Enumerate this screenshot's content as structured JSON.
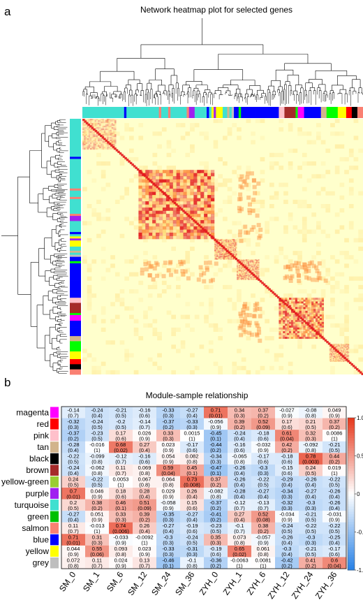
{
  "panel_a": {
    "letter": "a",
    "title": "Network heatmap plot for selected genes"
  },
  "panel_b": {
    "letter": "b",
    "title": "Module-sample relationship"
  },
  "chart_data": [
    {
      "type": "heatmap",
      "panel": "a",
      "title": "Network heatmap plot for selected genes",
      "description_free": true,
      "module_color_bar_colors": [
        "#40e0d0",
        "#0000ff",
        "#ffff00",
        "#a52a2a",
        "#00ff00",
        "#ff00ff",
        "#000000",
        "#ffc0cb",
        "#d2b48c",
        "#ff0000",
        "#fa8072",
        "#9acd32",
        "#a020f0",
        "#bebebe"
      ],
      "colorscale": [
        "#ffffd0",
        "#fed976",
        "#fd8d3c",
        "#e31a1c"
      ]
    },
    {
      "type": "heatmap",
      "panel": "b",
      "title": "Module-sample relationship",
      "x_categories": [
        "SM_0",
        "SM_1",
        "SM_6",
        "SM_12",
        "SM_24",
        "SM_36",
        "ZYH_0",
        "ZYH_1",
        "ZYH_6",
        "ZYH_12",
        "ZYH_24",
        "ZYH_36"
      ],
      "y_categories": [
        "magenta",
        "red",
        "pink",
        "tan",
        "black",
        "brown",
        "yellow-green",
        "purple",
        "turquoise",
        "green",
        "salmon",
        "blue",
        "yellow",
        "grey"
      ],
      "row_colors": [
        "#ff00ff",
        "#ff0000",
        "#ffc0cb",
        "#d2b48c",
        "#000000",
        "#a52a2a",
        "#9acd32",
        "#a020f0",
        "#40e0d0",
        "#00c000",
        "#fa8072",
        "#0000ff",
        "#ffff00",
        "#bebebe"
      ],
      "values": [
        [
          -0.14,
          -0.24,
          -0.21,
          -0.16,
          -0.33,
          -0.27,
          0.71,
          0.34,
          0.37,
          -0.027,
          -0.08,
          0.049
        ],
        [
          -0.32,
          -0.24,
          -0.2,
          -0.14,
          -0.37,
          -0.33,
          -0.056,
          0.39,
          0.52,
          0.17,
          0.21,
          0.37
        ],
        [
          -0.37,
          -0.23,
          0.17,
          0.026,
          0.33,
          0.0015,
          -0.45,
          -0.24,
          -0.18,
          0.61,
          0.32,
          0.0086
        ],
        [
          -0.28,
          -0.016,
          0.68,
          0.27,
          0.023,
          -0.17,
          -0.44,
          -0.16,
          -0.032,
          0.42,
          -0.092,
          -0.21
        ],
        [
          -0.22,
          -0.099,
          -0.12,
          -0.16,
          0.054,
          0.082,
          -0.34,
          -0.065,
          -0.17,
          -0.18,
          0.78,
          0.44
        ],
        [
          -0.24,
          -0.062,
          0.11,
          0.069,
          0.59,
          0.45,
          -0.47,
          -0.26,
          -0.3,
          -0.15,
          0.24,
          0.019
        ],
        [
          0.24,
          -0.22,
          0.0053,
          0.067,
          0.064,
          0.73,
          0.37,
          -0.26,
          -0.22,
          -0.29,
          -0.26,
          -0.22
        ],
        [
          0.7,
          0.046,
          0.18,
          0.28,
          0.029,
          0.26,
          -0.082,
          -0.28,
          -0.27,
          -0.34,
          -0.27,
          -0.26
        ],
        [
          0.2,
          0.38,
          0.46,
          0.51,
          -0.058,
          0.15,
          -0.37,
          -0.12,
          -0.13,
          -0.32,
          -0.3,
          -0.26
        ],
        [
          -0.27,
          0.051,
          0.33,
          0.39,
          -0.35,
          -0.27,
          -0.41,
          0.27,
          0.52,
          -0.034,
          -0.21,
          -0.031
        ],
        [
          0.11,
          -0.013,
          0.74,
          0.26,
          -0.27,
          -0.19,
          -0.23,
          -0.1,
          0.38,
          -0.24,
          -0.22,
          -0.22
        ],
        [
          0.71,
          0.31,
          -0.033,
          -0.0092,
          -0.3,
          -0.24,
          0.35,
          0.073,
          -0.057,
          -0.26,
          -0.3,
          -0.25
        ],
        [
          0.044,
          0.55,
          0.093,
          0.023,
          -0.33,
          -0.31,
          -0.19,
          0.65,
          0.061,
          -0.3,
          -0.21,
          -0.17
        ],
        [
          0.072,
          0.11,
          0.024,
          0.13,
          -0.46,
          -0.1,
          -0.36,
          -0.0063,
          0.0081,
          -0.42,
          0.41,
          0.6
        ]
      ],
      "pvalues": [
        [
          "(0.7)",
          "(0.4)",
          "(0.5)",
          "(0.6)",
          "(0.3)",
          "(0.4)",
          "(0.01)",
          "(0.3)",
          "(0.2)",
          "(0.9)",
          "(0.8)",
          "(0.9)"
        ],
        [
          "(0.3)",
          "(0.5)",
          "(0.5)",
          "(0.7)",
          "(0.2)",
          "(0.3)",
          "(0.9)",
          "(0.2)",
          "(0.09)",
          "(0.6)",
          "(0.5)",
          "(0.2)"
        ],
        [
          "(0.2)",
          "(0.5)",
          "(0.6)",
          "(0.9)",
          "(0.3)",
          "(1)",
          "(0.1)",
          "(0.4)",
          "(0.6)",
          "(0.04)",
          "(0.3)",
          "(1)"
        ],
        [
          "(0.4)",
          "(1)",
          "(0.02)",
          "(0.4)",
          "(0.9)",
          "(0.6)",
          "(0.2)",
          "(0.6)",
          "(0.9)",
          "(0.2)",
          "(0.8)",
          "(0.5)"
        ],
        [
          "(0.5)",
          "(0.8)",
          "(0.7)",
          "(0.6)",
          "(0.9)",
          "(0.8)",
          "(0.3)",
          "(0.8)",
          "(0.6)",
          "(0.6)",
          "(0.003)",
          "(0.2)"
        ],
        [
          "(0.4)",
          "(0.8)",
          "(0.7)",
          "(0.8)",
          "(0.04)",
          "(0.1)",
          "(0.1)",
          "(0.4)",
          "(0.3)",
          "(0.6)",
          "(0.5)",
          "(1)"
        ],
        [
          "(0.5)",
          "(0.5)",
          "(1)",
          "(0.8)",
          "(0.8)",
          "(0.008)",
          "(0.2)",
          "(0.4)",
          "(0.5)",
          "(0.4)",
          "(0.4)",
          "(0.5)"
        ],
        [
          "(0.01)",
          "(0.9)",
          "(0.6)",
          "(0.4)",
          "(0.9)",
          "(0.4)",
          "(0.8)",
          "(0.4)",
          "(0.4)",
          "(0.3)",
          "(0.4)",
          "(0.4)"
        ],
        [
          "(0.5)",
          "(0.2)",
          "(0.1)",
          "(0.09)",
          "(0.9)",
          "(0.6)",
          "(0.2)",
          "(0.7)",
          "(0.7)",
          "(0.3)",
          "(0.3)",
          "(0.4)"
        ],
        [
          "(0.4)",
          "(0.9)",
          "(0.3)",
          "(0.2)",
          "(0.3)",
          "(0.4)",
          "(0.2)",
          "(0.4)",
          "(0.08)",
          "(0.9)",
          "(0.5)",
          "(0.9)"
        ],
        [
          "(0.7)",
          "(1)",
          "(0.006)",
          "(0.4)",
          "(0.4)",
          "(0.6)",
          "(0.5)",
          "(0.7)",
          "(0.2)",
          "(0.5)",
          "(0.5)",
          "(0.5)"
        ],
        [
          "(0.01)",
          "(0.3)",
          "(0.9)",
          "(1)",
          "(0.3)",
          "(0.5)",
          "(0.3)",
          "(0.8)",
          "(0.9)",
          "(0.4)",
          "(0.3)",
          "(0.4)"
        ],
        [
          "(0.9)",
          "(0.06)",
          "(0.8)",
          "(0.9)",
          "(0.3)",
          "(0.3)",
          "(0.6)",
          "(0.02)",
          "(0.8)",
          "(0.4)",
          "(0.5)",
          "(0.6)"
        ],
        [
          "(0.8)",
          "(0.7)",
          "(0.9)",
          "(0.7)",
          "(0.1)",
          "(0.8)",
          "(0.2)",
          "(1)",
          "(1)",
          "(0.2)",
          "(0.2)",
          "(0.04)"
        ]
      ],
      "colorbar_ticks": [
        "1.0",
        "0.5",
        "0",
        "-0.5",
        "-1.0"
      ],
      "colorbar_range": [
        -1,
        1
      ],
      "colors": {
        "negative": "#2b83e6",
        "zero": "#ffffff",
        "positive": "#e63a1e"
      }
    }
  ]
}
